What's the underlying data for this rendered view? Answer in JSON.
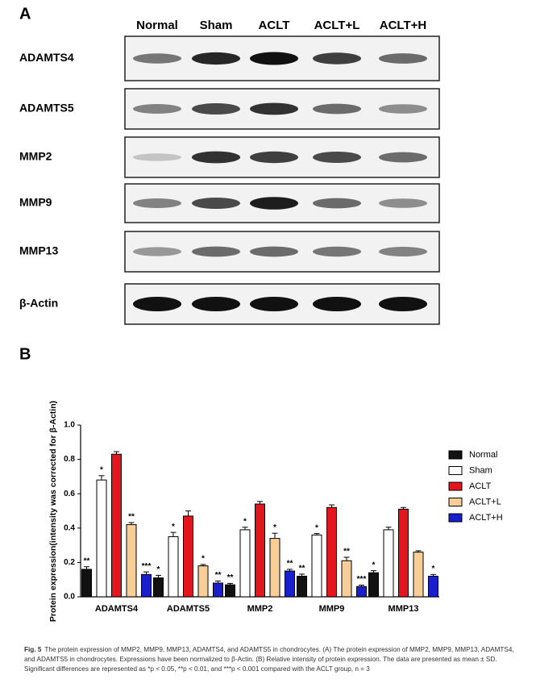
{
  "panel_a": {
    "label": "A",
    "lanes": [
      "Normal",
      "Sham",
      "ACLT",
      "ACLT+L",
      "ACLT+H"
    ],
    "rows": [
      "ADAMTS4",
      "ADAMTS5",
      "MMP2",
      "MMP9",
      "MMP13",
      "β-Actin"
    ]
  },
  "chart_data": {
    "type": "bar",
    "panel_label": "B",
    "y_label": "Protein expression(intensity was corrected for β-Actin)",
    "categories": [
      "ADAMTS4",
      "ADAMTS5",
      "MMP2",
      "MMP9",
      "MMP13"
    ],
    "series": [
      {
        "name": "Normal",
        "color": "#111111",
        "values": [
          0.16,
          0.11,
          0.07,
          0.12,
          0.14
        ],
        "errors": [
          0.015,
          0.015,
          0.008,
          0.012,
          0.012
        ],
        "annotations": [
          "**",
          "*",
          "**",
          "**",
          "*"
        ]
      },
      {
        "name": "Sham",
        "color": "#ffffff",
        "values": [
          0.68,
          0.35,
          0.39,
          0.36,
          0.39
        ],
        "errors": [
          0.025,
          0.025,
          0.015,
          0.008,
          0.015
        ],
        "annotations": [
          "*",
          "*",
          "*",
          "*",
          null
        ]
      },
      {
        "name": "ACLT",
        "color": "#e3161d",
        "values": [
          0.83,
          0.47,
          0.54,
          0.52,
          0.51
        ],
        "errors": [
          0.015,
          0.03,
          0.015,
          0.015,
          0.01
        ],
        "annotations": [
          null,
          null,
          null,
          null,
          null
        ]
      },
      {
        "name": "ACLT+L",
        "color": "#f7cd98",
        "values": [
          0.42,
          0.18,
          0.34,
          0.21,
          0.26
        ],
        "errors": [
          0.012,
          0.008,
          0.03,
          0.02,
          0.008
        ],
        "annotations": [
          "**",
          "*",
          "*",
          "**",
          null
        ]
      },
      {
        "name": "ACLT+H",
        "color": "#1a1fcc",
        "values": [
          0.13,
          0.08,
          0.15,
          0.06,
          0.12
        ],
        "errors": [
          0.015,
          0.012,
          0.01,
          0.008,
          0.01
        ],
        "annotations": [
          "***",
          "**",
          "**",
          "***",
          "*"
        ]
      }
    ],
    "ylim": [
      0,
      1
    ],
    "yticks": [
      {
        "value": 0,
        "label": "0.0"
      },
      0.2,
      0.4,
      0.6,
      0.8,
      {
        "value": 1,
        "label": "1.0"
      }
    ],
    "legend": "right"
  },
  "caption": {
    "label": "Fig. 5",
    "text": "The protein expression of MMP2, MMP9, MMP13, ADAMTS4, and ADAMTS5 in chondrocytes. (A) The protein expression of MMP2, MMP9, MMP13, ADAMTS4, and ADAMTS5 in chondrocytes. Expressions have been normalized to β-Actin. (B) Relative intensity of protein expression. The data are presented as mean ± SD. Significant differences are represented as *p < 0.05, **p < 0.01, and ***p < 0.001 compared with the ACLT group, n = 3"
  }
}
